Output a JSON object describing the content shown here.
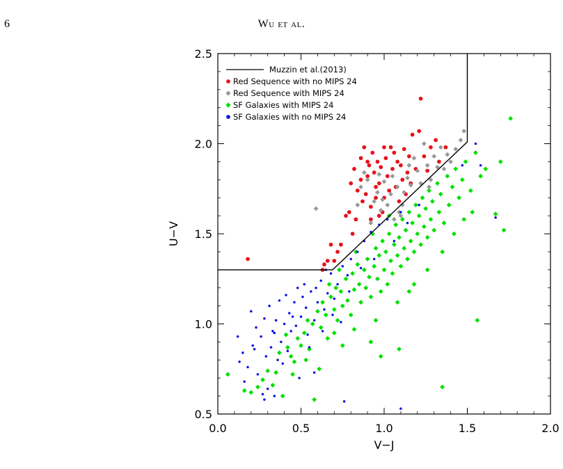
{
  "header": {
    "page_number": "6",
    "running_head": "Wu et al."
  },
  "chart_data": {
    "type": "scatter",
    "title": "",
    "xlabel": "V−J",
    "ylabel": "U−V",
    "xlim": [
      0.0,
      2.0
    ],
    "ylim": [
      0.5,
      2.5
    ],
    "x_ticks": [
      "0.0",
      "0.5",
      "1.0",
      "1.5",
      "2.0"
    ],
    "y_ticks": [
      "0.5",
      "1.0",
      "1.5",
      "2.0",
      "2.5"
    ],
    "x_tick_values": [
      0.0,
      0.5,
      1.0,
      1.5,
      2.0
    ],
    "y_tick_values": [
      0.5,
      1.0,
      1.5,
      2.0,
      2.5
    ],
    "grid": false,
    "legend_position": "top-left",
    "selection_line": {
      "name": "Muzzin et al.(2013)",
      "color": "#000000",
      "points": [
        [
          0.0,
          1.3
        ],
        [
          0.69,
          1.3
        ],
        [
          1.5,
          2.01
        ],
        [
          1.5,
          2.5
        ]
      ]
    },
    "series": [
      {
        "name": "Red Sequence with no MIPS 24",
        "color": "#e8111b",
        "marker": "circle",
        "points": [
          [
            0.18,
            1.36
          ],
          [
            0.63,
            1.3
          ],
          [
            0.64,
            1.33
          ],
          [
            0.66,
            1.35
          ],
          [
            0.68,
            1.44
          ],
          [
            0.7,
            1.35
          ],
          [
            0.72,
            1.4
          ],
          [
            0.74,
            1.44
          ],
          [
            0.77,
            1.6
          ],
          [
            0.79,
            1.62
          ],
          [
            0.81,
            1.5
          ],
          [
            0.83,
            1.58
          ],
          [
            0.8,
            1.78
          ],
          [
            0.82,
            1.86
          ],
          [
            0.84,
            1.74
          ],
          [
            0.86,
            1.8
          ],
          [
            0.87,
            1.68
          ],
          [
            0.88,
            1.98
          ],
          [
            0.89,
            1.72
          ],
          [
            0.9,
            1.82
          ],
          [
            0.91,
            1.88
          ],
          [
            0.92,
            1.65
          ],
          [
            0.93,
            1.95
          ],
          [
            0.94,
            1.84
          ],
          [
            0.95,
            1.76
          ],
          [
            0.96,
            1.9
          ],
          [
            0.97,
            1.78
          ],
          [
            0.98,
            1.87
          ],
          [
            0.99,
            1.62
          ],
          [
            1.0,
            1.7
          ],
          [
            1.01,
            1.92
          ],
          [
            1.02,
            1.82
          ],
          [
            1.03,
            1.74
          ],
          [
            1.05,
            1.86
          ],
          [
            1.06,
            1.95
          ],
          [
            1.07,
            1.76
          ],
          [
            1.08,
            1.9
          ],
          [
            1.09,
            1.68
          ],
          [
            1.1,
            1.88
          ],
          [
            1.11,
            1.8
          ],
          [
            1.12,
            1.97
          ],
          [
            1.13,
            1.72
          ],
          [
            1.14,
            1.84
          ],
          [
            1.15,
            1.93
          ],
          [
            1.17,
            2.05
          ],
          [
            1.19,
            1.86
          ],
          [
            1.21,
            2.07
          ],
          [
            1.22,
            2.25
          ],
          [
            1.24,
            1.93
          ],
          [
            1.26,
            1.85
          ],
          [
            1.28,
            1.98
          ],
          [
            1.31,
            2.02
          ],
          [
            1.33,
            1.9
          ],
          [
            1.37,
            1.98
          ],
          [
            0.92,
            1.58
          ],
          [
            0.97,
            1.6
          ],
          [
            1.04,
            1.98
          ],
          [
            0.86,
            1.92
          ],
          [
            1.0,
            1.98
          ],
          [
            1.16,
            1.78
          ],
          [
            0.95,
            1.7
          ],
          [
            0.9,
            1.9
          ]
        ]
      },
      {
        "name": "Red Sequence with MIPS 24",
        "color": "#999999",
        "marker": "diamond",
        "points": [
          [
            0.59,
            1.64
          ],
          [
            0.86,
            1.76
          ],
          [
            0.9,
            1.8
          ],
          [
            0.92,
            1.56
          ],
          [
            0.94,
            1.68
          ],
          [
            0.96,
            1.73
          ],
          [
            0.98,
            1.63
          ],
          [
            1.0,
            1.79
          ],
          [
            1.02,
            1.66
          ],
          [
            1.04,
            1.72
          ],
          [
            1.06,
            1.58
          ],
          [
            1.08,
            1.76
          ],
          [
            1.1,
            1.6
          ],
          [
            1.12,
            1.73
          ],
          [
            1.14,
            1.81
          ],
          [
            1.16,
            1.77
          ],
          [
            1.18,
            1.92
          ],
          [
            1.2,
            1.85
          ],
          [
            1.22,
            1.78
          ],
          [
            1.24,
            2.0
          ],
          [
            1.26,
            1.88
          ],
          [
            1.28,
            1.8
          ],
          [
            1.3,
            1.93
          ],
          [
            1.32,
            1.87
          ],
          [
            1.34,
            1.98
          ],
          [
            1.36,
            1.86
          ],
          [
            1.38,
            1.94
          ],
          [
            1.4,
            1.9
          ],
          [
            1.43,
            1.97
          ],
          [
            1.46,
            2.02
          ],
          [
            1.48,
            2.07
          ],
          [
            0.88,
            1.84
          ],
          [
            1.05,
            1.82
          ],
          [
            0.84,
            1.66
          ],
          [
            1.15,
            1.88
          ],
          [
            1.27,
            1.76
          ],
          [
            0.99,
            1.69
          ],
          [
            1.11,
            1.66
          ],
          [
            1.09,
            1.62
          ],
          [
            0.97,
            1.83
          ]
        ]
      },
      {
        "name": "SF Galaxies with MIPS 24",
        "color": "#00e000",
        "marker": "diamond",
        "points": [
          [
            0.06,
            0.72
          ],
          [
            0.16,
            0.63
          ],
          [
            0.2,
            0.62
          ],
          [
            0.24,
            0.65
          ],
          [
            0.27,
            0.69
          ],
          [
            0.3,
            0.74
          ],
          [
            0.33,
            0.66
          ],
          [
            0.35,
            0.73
          ],
          [
            0.37,
            0.84
          ],
          [
            0.39,
            0.6
          ],
          [
            0.42,
            0.87
          ],
          [
            0.44,
            0.82
          ],
          [
            0.46,
            0.79
          ],
          [
            0.48,
            0.92
          ],
          [
            0.5,
            0.88
          ],
          [
            0.52,
            0.95
          ],
          [
            0.54,
            1.02
          ],
          [
            0.55,
            0.86
          ],
          [
            0.57,
            1.0
          ],
          [
            0.58,
            0.58
          ],
          [
            0.6,
            1.07
          ],
          [
            0.62,
            0.98
          ],
          [
            0.63,
            1.12
          ],
          [
            0.65,
            1.05
          ],
          [
            0.66,
            0.92
          ],
          [
            0.68,
            1.15
          ],
          [
            0.7,
            1.08
          ],
          [
            0.71,
            1.2
          ],
          [
            0.72,
            1.02
          ],
          [
            0.74,
            1.18
          ],
          [
            0.75,
            1.1
          ],
          [
            0.77,
            1.25
          ],
          [
            0.78,
            1.13
          ],
          [
            0.8,
            1.05
          ],
          [
            0.81,
            1.28
          ],
          [
            0.82,
            1.19
          ],
          [
            0.84,
            1.33
          ],
          [
            0.85,
            1.22
          ],
          [
            0.86,
            1.12
          ],
          [
            0.88,
            1.3
          ],
          [
            0.89,
            1.2
          ],
          [
            0.9,
            1.36
          ],
          [
            0.91,
            1.26
          ],
          [
            0.92,
            1.15
          ],
          [
            0.94,
            1.32
          ],
          [
            0.95,
            1.42
          ],
          [
            0.96,
            1.25
          ],
          [
            0.97,
            1.38
          ],
          [
            0.98,
            1.18
          ],
          [
            0.99,
            1.46
          ],
          [
            1.0,
            1.3
          ],
          [
            1.01,
            1.4
          ],
          [
            1.02,
            1.22
          ],
          [
            1.03,
            1.5
          ],
          [
            1.04,
            1.35
          ],
          [
            1.05,
            1.28
          ],
          [
            1.06,
            1.44
          ],
          [
            1.07,
            1.55
          ],
          [
            1.08,
            1.38
          ],
          [
            1.09,
            1.48
          ],
          [
            1.1,
            1.32
          ],
          [
            1.11,
            1.58
          ],
          [
            1.12,
            1.42
          ],
          [
            1.13,
            1.52
          ],
          [
            1.14,
            1.36
          ],
          [
            1.15,
            1.62
          ],
          [
            1.16,
            1.46
          ],
          [
            1.17,
            1.56
          ],
          [
            1.18,
            1.4
          ],
          [
            1.19,
            1.66
          ],
          [
            1.2,
            1.5
          ],
          [
            1.21,
            1.6
          ],
          [
            1.22,
            1.44
          ],
          [
            1.23,
            1.7
          ],
          [
            1.24,
            1.54
          ],
          [
            1.25,
            1.64
          ],
          [
            1.26,
            1.48
          ],
          [
            1.27,
            1.74
          ],
          [
            1.28,
            1.58
          ],
          [
            1.29,
            1.68
          ],
          [
            1.3,
            1.52
          ],
          [
            1.32,
            1.78
          ],
          [
            1.33,
            1.62
          ],
          [
            1.34,
            1.72
          ],
          [
            1.36,
            1.56
          ],
          [
            1.38,
            1.82
          ],
          [
            1.39,
            1.66
          ],
          [
            1.41,
            1.76
          ],
          [
            1.43,
            1.86
          ],
          [
            1.45,
            1.7
          ],
          [
            1.47,
            1.8
          ],
          [
            1.49,
            1.9
          ],
          [
            1.52,
            1.74
          ],
          [
            1.55,
            1.95
          ],
          [
            1.58,
            1.82
          ],
          [
            1.61,
            1.86
          ],
          [
            1.67,
            1.61
          ],
          [
            1.7,
            1.9
          ],
          [
            1.72,
            1.52
          ],
          [
            1.76,
            2.14
          ],
          [
            1.56,
            1.02
          ],
          [
            1.35,
            0.65
          ],
          [
            1.09,
            0.86
          ],
          [
            0.98,
            0.82
          ],
          [
            0.92,
            0.9
          ],
          [
            0.75,
            0.88
          ],
          [
            0.61,
            0.75
          ],
          [
            0.82,
            0.97
          ],
          [
            1.18,
            1.22
          ],
          [
            1.26,
            1.3
          ],
          [
            1.35,
            1.4
          ],
          [
            1.42,
            1.5
          ],
          [
            1.48,
            1.58
          ],
          [
            1.53,
            1.62
          ],
          [
            1.08,
            1.12
          ],
          [
            1.15,
            1.18
          ],
          [
            0.95,
            1.02
          ],
          [
            0.7,
            0.95
          ],
          [
            0.53,
            0.8
          ],
          [
            0.45,
            0.72
          ],
          [
            0.41,
            0.94
          ],
          [
            0.67,
            1.22
          ],
          [
            0.73,
            1.3
          ],
          [
            0.83,
            1.4
          ],
          [
            0.93,
            1.5
          ],
          [
            1.03,
            1.6
          ]
        ]
      },
      {
        "name": "SF Galaxies with no MIPS 24",
        "color": "#0a14e6",
        "marker": "circle",
        "points": [
          [
            0.12,
            0.93
          ],
          [
            0.13,
            0.79
          ],
          [
            0.15,
            0.84
          ],
          [
            0.16,
            0.68
          ],
          [
            0.18,
            0.76
          ],
          [
            0.2,
            1.07
          ],
          [
            0.21,
            0.88
          ],
          [
            0.23,
            0.98
          ],
          [
            0.24,
            0.72
          ],
          [
            0.26,
            0.93
          ],
          [
            0.27,
            0.61
          ],
          [
            0.28,
            1.03
          ],
          [
            0.29,
            0.82
          ],
          [
            0.3,
            0.64
          ],
          [
            0.31,
            1.1
          ],
          [
            0.32,
            0.87
          ],
          [
            0.34,
            0.95
          ],
          [
            0.35,
            1.02
          ],
          [
            0.36,
            0.8
          ],
          [
            0.37,
            1.13
          ],
          [
            0.38,
            0.9
          ],
          [
            0.4,
            1.0
          ],
          [
            0.41,
            1.16
          ],
          [
            0.42,
            0.85
          ],
          [
            0.43,
            1.06
          ],
          [
            0.44,
            0.96
          ],
          [
            0.46,
            1.12
          ],
          [
            0.47,
            0.99
          ],
          [
            0.48,
            1.2
          ],
          [
            0.5,
            1.04
          ],
          [
            0.51,
            1.15
          ],
          [
            0.53,
            1.09
          ],
          [
            0.54,
            0.94
          ],
          [
            0.56,
            1.18
          ],
          [
            0.58,
            1.02
          ],
          [
            0.6,
            1.12
          ],
          [
            0.62,
            1.24
          ],
          [
            0.64,
            1.08
          ],
          [
            0.66,
            1.17
          ],
          [
            0.68,
            1.28
          ],
          [
            0.7,
            1.14
          ],
          [
            0.72,
            1.22
          ],
          [
            0.75,
            1.32
          ],
          [
            0.78,
            1.27
          ],
          [
            0.8,
            1.36
          ],
          [
            0.84,
            1.4
          ],
          [
            0.88,
            1.46
          ],
          [
            0.92,
            1.51
          ],
          [
            0.97,
            1.55
          ],
          [
            1.02,
            1.58
          ],
          [
            1.06,
            1.46
          ],
          [
            1.1,
            1.62
          ],
          [
            1.14,
            1.56
          ],
          [
            1.21,
            1.66
          ],
          [
            1.47,
            1.88
          ],
          [
            1.55,
            2.0
          ],
          [
            1.58,
            1.88
          ],
          [
            1.67,
            1.59
          ],
          [
            1.1,
            0.53
          ],
          [
            0.76,
            0.57
          ],
          [
            0.58,
            0.73
          ],
          [
            0.28,
            0.58
          ],
          [
            0.34,
            0.6
          ],
          [
            0.49,
            0.7
          ],
          [
            0.55,
            0.87
          ],
          [
            0.39,
            0.78
          ],
          [
            0.63,
            0.96
          ],
          [
            0.74,
            1.01
          ],
          [
            0.86,
            1.31
          ],
          [
            0.69,
            1.05
          ],
          [
            0.59,
            1.2
          ],
          [
            0.45,
            1.04
          ],
          [
            0.33,
            0.96
          ],
          [
            0.22,
            0.86
          ],
          [
            0.52,
            1.22
          ],
          [
            0.65,
            1.3
          ],
          [
            0.79,
            1.18
          ],
          [
            0.94,
            1.36
          ]
        ]
      }
    ]
  }
}
